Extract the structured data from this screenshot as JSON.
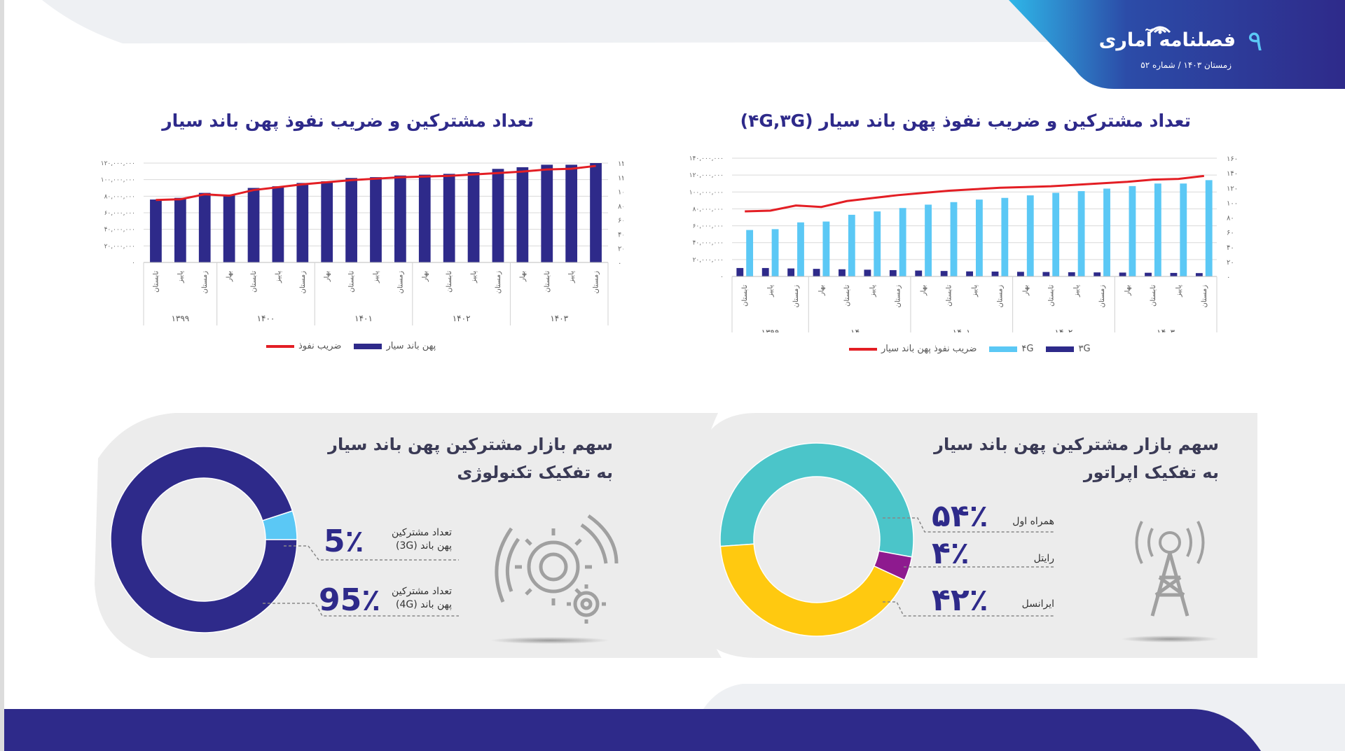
{
  "header": {
    "page_number": "۹",
    "logo_text": "فصلنامه آماری",
    "issue_text": "زمستان ۱۴۰۳ / شماره ۵۲"
  },
  "charts_top": {
    "right_title": "تعداد مشترکین و ضریب نفوذ پهن باند سیار (۴G,۳G)",
    "left_title": "تعداد مشترکین و ضریب نفوذ پهن باند سیار"
  },
  "panel_right": {
    "title_line1": "سهم بازار مشترکین پهن باند سیار",
    "title_line2": "به تفکیک اپراتور",
    "items": [
      {
        "pct": "۵۴٪",
        "label": "همراه اول"
      },
      {
        "pct": "۴٪",
        "label": "رایتل"
      },
      {
        "pct": "۴۲٪",
        "label": "ایرانسل"
      }
    ]
  },
  "panel_left": {
    "title_line1": "سهم بازار مشترکین پهن باند سیار",
    "title_line2": "به تفکیک تکنولوژی",
    "items": [
      {
        "pct": "5٪",
        "label1": "تعداد مشترکین",
        "label2": "پهن باند (3G)"
      },
      {
        "pct": "95٪",
        "label1": "تعداد مشترکین",
        "label2": "پهن باند (4G)"
      }
    ]
  },
  "colors": {
    "navy": "#2e2a8a",
    "light_blue": "#5bc8f5",
    "red": "#e31e24",
    "teal": "#4bc5c9",
    "yellow": "#ffc910",
    "purple": "#8e1a8f",
    "gray_panel": "#ececec"
  },
  "chart_data": [
    {
      "type": "bar",
      "id": "broadband_total",
      "title": "تعداد مشترکین و ضریب نفوذ پهن باند سیار",
      "categories": [
        "تابستان",
        "پاییز",
        "زمستان",
        "بهار",
        "تابستان",
        "پاییز",
        "زمستان",
        "بهار",
        "تابستان",
        "پاییز",
        "زمستان",
        "بهار",
        "تابستان",
        "پاییز",
        "زمستان",
        "بهار",
        "تابستان",
        "پاییز",
        "زمستان"
      ],
      "groups": [
        {
          "label": "۱۳۹۹",
          "count": 3
        },
        {
          "label": "۱۴۰۰",
          "count": 4
        },
        {
          "label": "۱۴۰۱",
          "count": 4
        },
        {
          "label": "۱۴۰۲",
          "count": 4
        },
        {
          "label": "۱۴۰۳",
          "count": 4
        }
      ],
      "series": [
        {
          "name": "پهن باند سیار",
          "axis": "left",
          "kind": "bar",
          "color": "#2e2a8a",
          "values": [
            76000000,
            78000000,
            84000000,
            82000000,
            90000000,
            92000000,
            96000000,
            98000000,
            102000000,
            103000000,
            105000000,
            106000000,
            107000000,
            109000000,
            113000000,
            115000000,
            118000000,
            118000000,
            120000000
          ]
        },
        {
          "name": "ضریب نفوذ",
          "axis": "right",
          "kind": "line",
          "color": "#e31e24",
          "values": [
            88,
            89,
            96,
            94,
            102,
            106,
            110,
            113,
            116,
            118,
            120,
            121,
            122,
            124,
            126,
            128,
            131,
            132,
            136
          ]
        }
      ],
      "y_left_ticks": [
        "۰",
        "۲۰,۰۰۰,۰۰۰",
        "۴۰,۰۰۰,۰۰۰",
        "۶۰,۰۰۰,۰۰۰",
        "۸۰,۰۰۰,۰۰۰",
        "۱۰۰,۰۰۰,۰۰۰",
        "۱۲۰,۰۰۰,۰۰۰"
      ],
      "y_right_ticks": [
        "۰",
        "۲۰",
        "۴۰",
        "۶۰",
        "۸۰",
        "۱۰۰",
        "۱۲۰",
        "۱۴۰"
      ],
      "ylim_left": [
        0,
        120000000
      ],
      "ylim_right": [
        0,
        140
      ],
      "legend": [
        {
          "name": "پهن باند سیار",
          "kind": "bar",
          "color": "#2e2a8a"
        },
        {
          "name": "ضریب نفوذ",
          "kind": "line",
          "color": "#e31e24"
        }
      ]
    },
    {
      "type": "bar",
      "id": "broadband_3g_4g",
      "title": "تعداد مشترکین و ضریب نفوذ پهن باند سیار (۴G,۳G)",
      "categories": [
        "تابستان",
        "پاییز",
        "زمستان",
        "بهار",
        "تابستان",
        "پاییز",
        "زمستان",
        "بهار",
        "تابستان",
        "پاییز",
        "زمستان",
        "بهار",
        "تابستان",
        "پاییز",
        "زمستان",
        "بهار",
        "تابستان",
        "پاییز",
        "زمستان"
      ],
      "groups": [
        {
          "label": "۱۳۹۹",
          "count": 3
        },
        {
          "label": "۱۴۰۰",
          "count": 4
        },
        {
          "label": "۱۴۰۱",
          "count": 4
        },
        {
          "label": "۱۴۰۲",
          "count": 4
        },
        {
          "label": "۱۴۰۳",
          "count": 4
        }
      ],
      "series": [
        {
          "name": "۳G",
          "axis": "left",
          "kind": "bar",
          "color": "#2e2a8a",
          "values": [
            10000000,
            10000000,
            9500000,
            9000000,
            8500000,
            8000000,
            7500000,
            7000000,
            6500000,
            6000000,
            5800000,
            5500000,
            5300000,
            5000000,
            4800000,
            4600000,
            4400000,
            4200000,
            4000000
          ]
        },
        {
          "name": "۴G",
          "axis": "left",
          "kind": "bar",
          "color": "#5bc8f5",
          "values": [
            55000000,
            56000000,
            64000000,
            65000000,
            73000000,
            77000000,
            81000000,
            85000000,
            88000000,
            91000000,
            93000000,
            96000000,
            99000000,
            101000000,
            104000000,
            107000000,
            110000000,
            110000000,
            114000000
          ]
        },
        {
          "name": "ضریب نفوذ پهن باند سیار",
          "axis": "right",
          "kind": "line",
          "color": "#e31e24",
          "values": [
            88,
            89,
            96,
            94,
            102,
            106,
            110,
            113,
            116,
            118,
            120,
            121,
            122,
            124,
            126,
            128,
            131,
            132,
            136
          ]
        }
      ],
      "y_left_ticks": [
        "۰",
        "۲۰,۰۰۰,۰۰۰",
        "۴۰,۰۰۰,۰۰۰",
        "۶۰,۰۰۰,۰۰۰",
        "۸۰,۰۰۰,۰۰۰",
        "۱۰۰,۰۰۰,۰۰۰",
        "۱۲۰,۰۰۰,۰۰۰",
        "۱۴۰,۰۰۰,۰۰۰"
      ],
      "y_right_ticks": [
        "۰",
        "۲۰",
        "۴۰",
        "۶۰",
        "۸۰",
        "۱۰۰",
        "۱۲۰",
        "۱۴۰",
        "۱۶۰"
      ],
      "ylim_left": [
        0,
        140000000
      ],
      "ylim_right": [
        0,
        160
      ],
      "legend": [
        {
          "name": "۳G",
          "kind": "bar",
          "color": "#2e2a8a"
        },
        {
          "name": "۴G",
          "kind": "bar",
          "color": "#5bc8f5"
        },
        {
          "name": "ضریب نفوذ پهن باند سیار",
          "kind": "line",
          "color": "#e31e24"
        }
      ]
    },
    {
      "type": "pie",
      "id": "share_by_operator",
      "title": "سهم بازار مشترکین پهن باند سیار به تفکیک اپراتور",
      "categories": [
        "همراه اول",
        "رایتل",
        "ایرانسل"
      ],
      "values": [
        54,
        4,
        42
      ],
      "colors": [
        "#4bc5c9",
        "#8e1a8f",
        "#ffc910"
      ],
      "donut": true
    },
    {
      "type": "pie",
      "id": "share_by_technology",
      "title": "سهم بازار مشترکین پهن باند سیار به تفکیک تکنولوژی",
      "categories": [
        "تعداد مشترکین پهن باند (3G)",
        "تعداد مشترکین پهن باند (4G)"
      ],
      "values": [
        5,
        95
      ],
      "colors": [
        "#5bc8f5",
        "#2e2a8a"
      ],
      "donut": true
    }
  ]
}
